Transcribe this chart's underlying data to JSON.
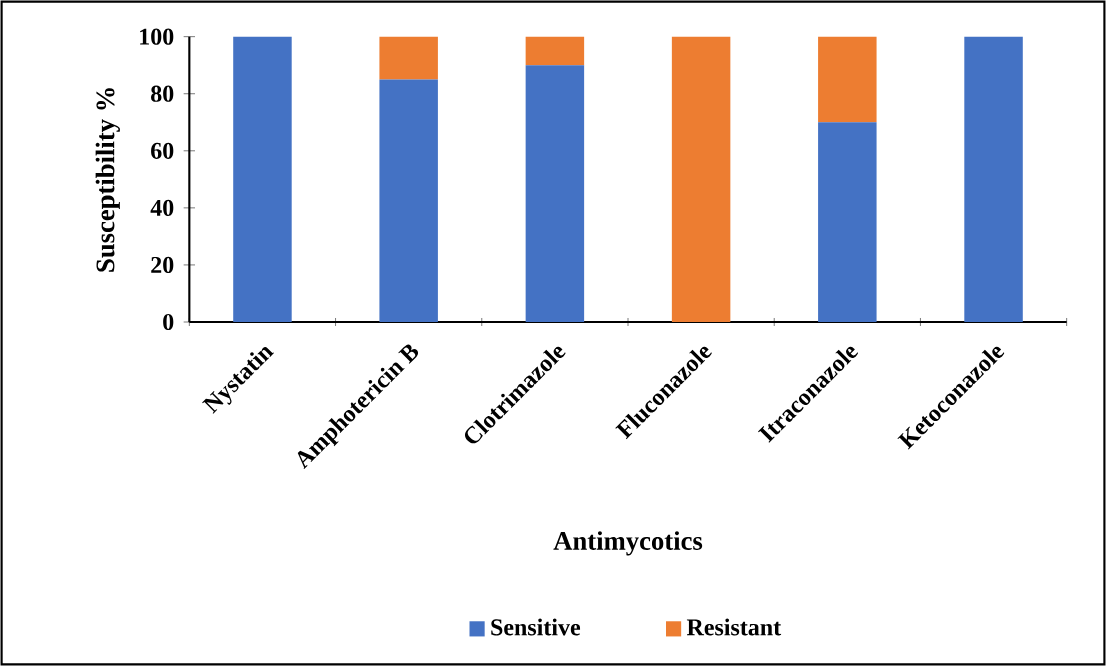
{
  "chart_data": {
    "type": "bar",
    "stacked": true,
    "xlabel": "Antimycotics",
    "ylabel": "Susceptibility %",
    "categories": [
      "Nystatin",
      "Amphotericin B",
      "Clotrimazole",
      "Fluconazole",
      "Itraconazole",
      "Ketoconazole"
    ],
    "series": [
      {
        "name": "Sensitive",
        "color": "#4472c4",
        "values": [
          100,
          85,
          90,
          0,
          70,
          100
        ]
      },
      {
        "name": "Resistant",
        "color": "#ed7d31",
        "values": [
          0,
          15,
          10,
          100,
          30,
          0
        ]
      }
    ],
    "ylim": [
      0,
      100
    ],
    "yticks": [
      0,
      20,
      40,
      60,
      80,
      100
    ],
    "grid": false,
    "legend": "bottom"
  }
}
